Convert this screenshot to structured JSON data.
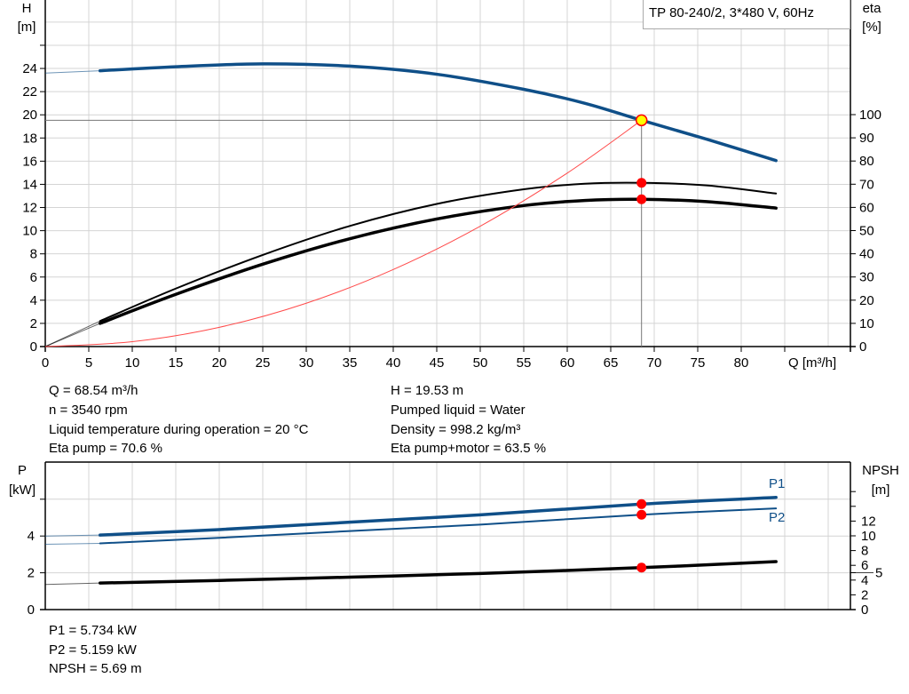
{
  "chart_data": [
    {
      "type": "line",
      "title": "TP 80-240/2, 3*480 V, 60Hz",
      "xlabel": "Q [m³/h]",
      "ylabel": "H\n[m]",
      "ylabel_parts": [
        "H",
        "[m]"
      ],
      "y2label_parts": [
        "eta",
        "[%]"
      ],
      "xlim": [
        0,
        92.5
      ],
      "ylim": [
        0,
        30
      ],
      "y2lim": [
        0,
        150
      ],
      "x_ticks": [
        0,
        5,
        10,
        15,
        20,
        25,
        30,
        35,
        40,
        45,
        50,
        55,
        60,
        65,
        70,
        75,
        80
      ],
      "y_ticks": [
        0,
        2,
        4,
        6,
        8,
        10,
        12,
        14,
        16,
        18,
        20,
        22,
        24
      ],
      "y2_ticks": [
        0,
        10,
        20,
        30,
        40,
        50,
        60,
        70,
        80,
        90,
        100
      ],
      "grid": true,
      "series": [
        {
          "id": "head",
          "axis": "left",
          "color": "#0f4f88",
          "width": 3.5,
          "x": [
            0,
            6.3,
            15,
            25,
            35,
            45,
            55,
            62,
            68.54,
            76,
            84
          ],
          "y": [
            23.6,
            23.8,
            24.15,
            24.4,
            24.2,
            23.5,
            22.2,
            21.0,
            19.53,
            17.9,
            16.05
          ]
        },
        {
          "id": "eta-pump",
          "axis": "right",
          "color": "#000000",
          "width": 2,
          "x": [
            0,
            6.3,
            15,
            25,
            35,
            45,
            55,
            62,
            68.54,
            76,
            84
          ],
          "y": [
            0,
            11,
            25,
            39.5,
            52,
            61.5,
            67.8,
            70.2,
            70.6,
            69.5,
            66
          ]
        },
        {
          "id": "eta-pump-motor",
          "axis": "right",
          "color": "#000000",
          "width": 3.5,
          "x": [
            0,
            6.3,
            15,
            25,
            35,
            45,
            55,
            62,
            68.54,
            76,
            84
          ],
          "y": [
            0,
            10,
            22.5,
            35.5,
            46.5,
            55,
            60.8,
            63,
            63.5,
            62.5,
            59.7
          ]
        },
        {
          "id": "system-curve",
          "axis": "left",
          "color": "#ff4a4a",
          "width": 1,
          "x": [
            0,
            10,
            20,
            30,
            40,
            50,
            60,
            68.54
          ],
          "y": [
            0,
            0.42,
            1.66,
            3.74,
            6.65,
            10.39,
            14.97,
            19.53
          ]
        }
      ],
      "duty_point": {
        "Q": 68.54,
        "H": 19.53,
        "eta_pump": 70.6,
        "eta_pump_motor": 63.5
      }
    },
    {
      "type": "line",
      "ylabel_parts": [
        "P",
        "[kW]"
      ],
      "y2label_parts": [
        "NPSH",
        "[m]"
      ],
      "xlim": [
        0,
        92.5
      ],
      "ylim": [
        0,
        7.5
      ],
      "y2lim": [
        0,
        18.7
      ],
      "y_ticks": [
        0,
        2,
        4
      ],
      "y_gridlines": [
        0,
        2,
        4,
        6
      ],
      "y2_ticks": [
        0,
        2,
        4,
        5,
        6,
        8,
        10,
        12
      ],
      "y2_minor_ticks": [
        14,
        16
      ],
      "grid": true,
      "series": [
        {
          "id": "P1",
          "name": "P1",
          "axis": "left",
          "color": "#0f4f88",
          "width": 3.5,
          "x": [
            0,
            6.3,
            20,
            35,
            50,
            68.54,
            84
          ],
          "y": [
            4.0,
            4.05,
            4.35,
            4.75,
            5.15,
            5.734,
            6.1
          ]
        },
        {
          "id": "P2",
          "name": "P2",
          "axis": "left",
          "color": "#0f4f88",
          "width": 2,
          "x": [
            0,
            6.3,
            20,
            35,
            50,
            68.54,
            84
          ],
          "y": [
            3.55,
            3.6,
            3.9,
            4.27,
            4.62,
            5.159,
            5.5
          ]
        },
        {
          "id": "NPSH",
          "axis": "right",
          "color": "#000000",
          "width": 3.5,
          "x": [
            0,
            6.3,
            20,
            35,
            50,
            68.54,
            84
          ],
          "y": [
            3.4,
            3.6,
            3.95,
            4.4,
            4.9,
            5.69,
            6.5
          ]
        }
      ],
      "duty_point": {
        "Q": 68.54,
        "P1": 5.734,
        "P2": 5.159,
        "NPSH": 5.69
      }
    }
  ],
  "info_top_left": [
    "Q = 68.54 m³/h",
    "n = 3540 rpm",
    "Liquid temperature during operation = 20 °C",
    "Eta pump = 70.6 %"
  ],
  "info_top_right": [
    "H = 19.53 m",
    "Pumped liquid = Water",
    "Density = 998.2 kg/m³",
    "Eta pump+motor = 63.5 %"
  ],
  "info_bottom": [
    "P1 = 5.734 kW",
    "P2 = 5.159 kW",
    "NPSH = 5.69 m"
  ],
  "colors": {
    "pump_curve": "#0f4f88",
    "duty_marker": "#ff0000",
    "duty_marker_head": "#ffff00",
    "grid": "#d0d0d0"
  }
}
